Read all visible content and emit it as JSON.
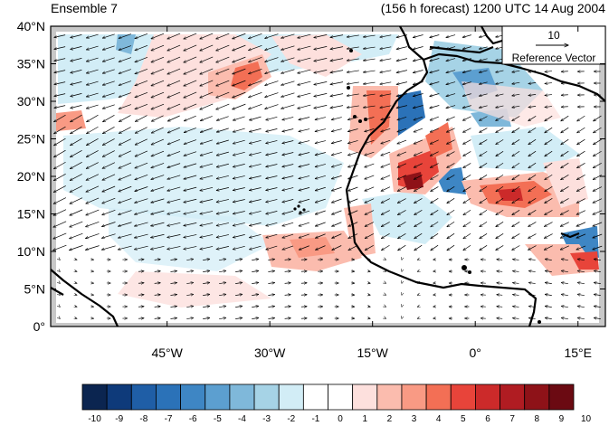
{
  "header": {
    "left_title": "Ensemble 7",
    "right_title": "(156 h forecast) 1200 UTC 14 Aug 2004"
  },
  "map": {
    "lon_range": [
      -60,
      20
    ],
    "lat_range": [
      0,
      40
    ],
    "lat_ticks": [
      "0°",
      "5°N",
      "10°N",
      "15°N",
      "20°N",
      "25°N",
      "30°N",
      "35°N",
      "40°N"
    ],
    "lon_ticks": [
      "45°W",
      "30°W",
      "15°W",
      "0°",
      "15°E"
    ],
    "reference_vector": {
      "magnitude": "10",
      "label": "Reference Vector"
    }
  },
  "colorbar": {
    "labels": [
      "-10",
      "-9",
      "-8",
      "-7",
      "-6",
      "-5",
      "-4",
      "-3",
      "-2",
      "-1",
      "0",
      "1",
      "2",
      "3",
      "4",
      "5",
      "6",
      "7",
      "8",
      "9",
      "10"
    ],
    "colors": [
      "#0b2550",
      "#0e3a7a",
      "#1f5ea6",
      "#2b72b8",
      "#3e86c4",
      "#5c9fd0",
      "#7fb8da",
      "#a6d3e6",
      "#d2edf6",
      "#ffffff",
      "#ffffff",
      "#fde0dd",
      "#fbbcae",
      "#f99a84",
      "#f36f55",
      "#e8443a",
      "#cc2a2a",
      "#b01c22",
      "#8e1218",
      "#6b0a12"
    ]
  },
  "colors": {
    "land_mask": "#c8c8c8",
    "coastline": "#000000"
  }
}
